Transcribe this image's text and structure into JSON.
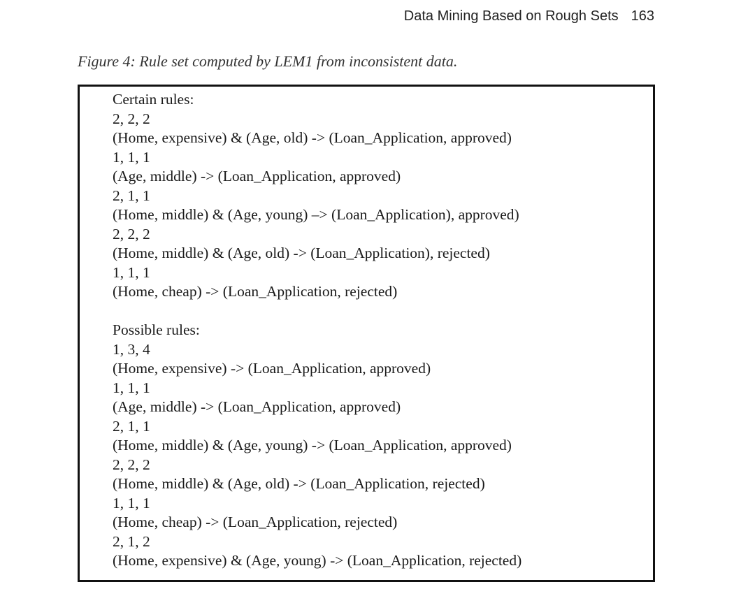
{
  "header": {
    "title": "Data Mining Based on Rough Sets",
    "page_number": "163"
  },
  "figure": {
    "caption": "Figure 4: Rule set computed by LEM1 from inconsistent data.",
    "certain": {
      "heading": "Certain rules:",
      "lines": [
        "2, 2, 2",
        "(Home, expensive) & (Age, old) -> (Loan_Application, approved)",
        "1, 1, 1",
        "(Age, middle) -> (Loan_Application, approved)",
        "2, 1, 1",
        "(Home, middle) & (Age, young) –> (Loan_Application), approved)",
        "2, 2, 2",
        "(Home, middle) & (Age, old) -> (Loan_Application), rejected)",
        "1, 1, 1",
        "(Home, cheap) -> (Loan_Application, rejected)"
      ]
    },
    "possible": {
      "heading": "Possible rules:",
      "lines": [
        "1, 3, 4",
        "(Home, expensive) -> (Loan_Application, approved)",
        "1, 1, 1",
        "(Age, middle) -> (Loan_Application, approved)",
        "2, 1, 1",
        "(Home, middle) & (Age, young) -> (Loan_Application, approved)",
        "2, 2, 2",
        "(Home, middle) & (Age, old) -> (Loan_Application, rejected)",
        "1, 1, 1",
        "(Home, cheap) -> (Loan_Application, rejected)",
        "2, 1, 2",
        "(Home, expensive) & (Age, young) -> (Loan_Application, rejected)"
      ]
    }
  }
}
